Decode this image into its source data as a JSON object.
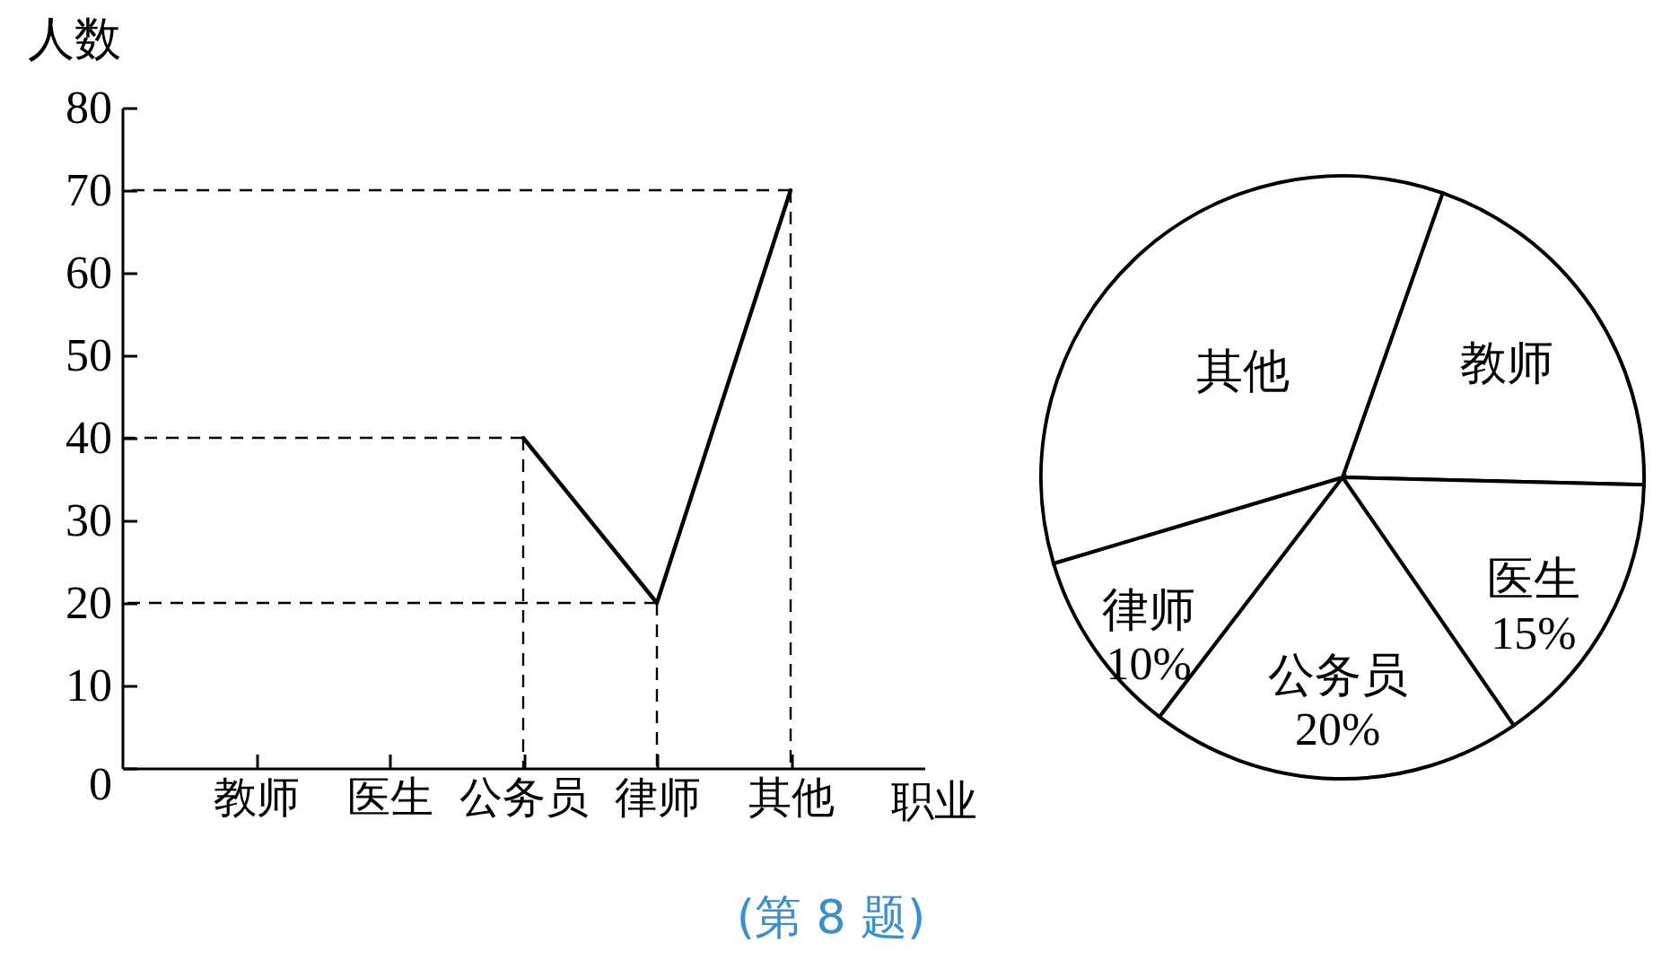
{
  "chart_data": [
    {
      "type": "line",
      "xlabel": "职业",
      "ylabel": "人数",
      "categories": [
        "教师",
        "医生",
        "公务员",
        "律师",
        "其他"
      ],
      "values": [
        null,
        null,
        40,
        20,
        70
      ],
      "color": "#000000",
      "ylim": [
        0,
        80
      ],
      "yticks": [
        0,
        10,
        20,
        30,
        40,
        50,
        60,
        70,
        80
      ],
      "ref_lines": [
        {
          "axis": "y",
          "value": 70,
          "line_style": "dashed"
        },
        {
          "axis": "y",
          "value": 40,
          "line_style": "dashed"
        },
        {
          "axis": "y",
          "value": 20,
          "line_style": "dashed"
        },
        {
          "axis": "x",
          "value": "公务员",
          "line_style": "dashed"
        },
        {
          "axis": "x",
          "value": "律师",
          "line_style": "dashed"
        },
        {
          "axis": "x",
          "value": "其他",
          "line_style": "dashed"
        }
      ],
      "annotations": [
        "(第 8 题)"
      ]
    },
    {
      "type": "pie",
      "categories": [
        "教师",
        "医生",
        "公务员",
        "律师",
        "其他"
      ],
      "values": [
        20,
        15,
        20,
        10,
        35
      ],
      "colors": [
        "#ffffff",
        "#ffffff",
        "#ffffff",
        "#ffffff",
        "#ffffff"
      ],
      "value_labels": [
        null,
        "15%",
        "20%",
        "10%",
        null
      ]
    }
  ]
}
